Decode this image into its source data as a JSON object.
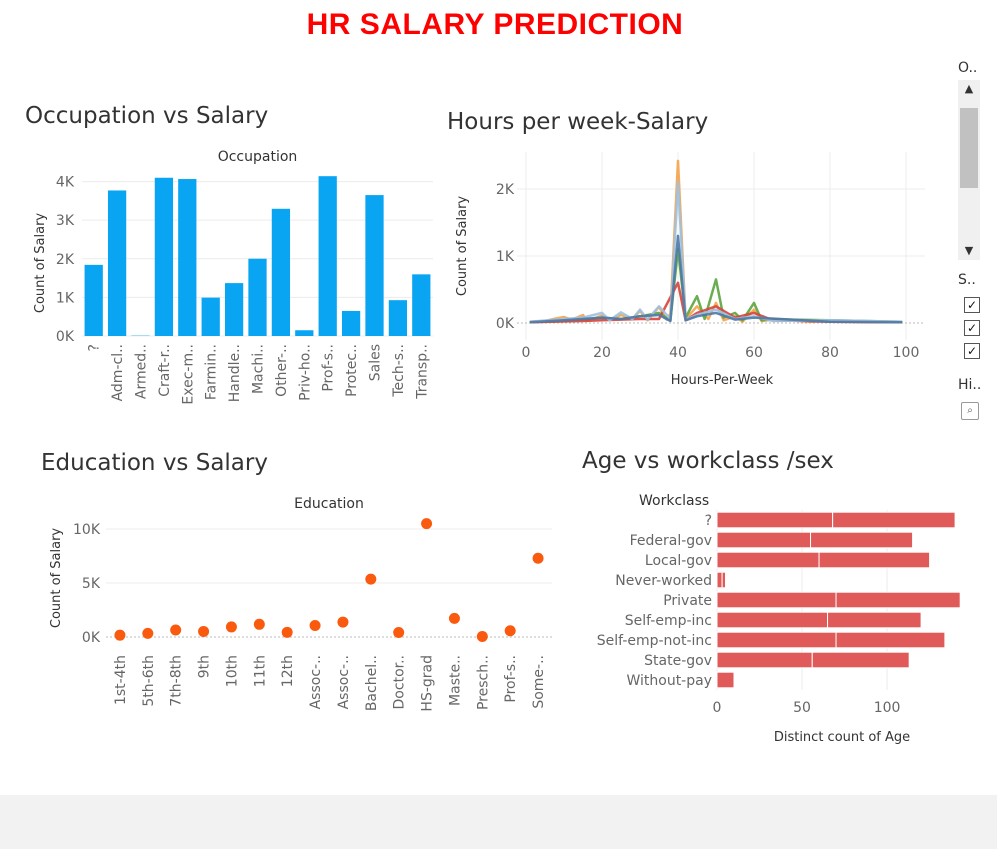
{
  "dashboard": {
    "title": "HR SALARY PREDICTION"
  },
  "side_panel": {
    "filter_label_1": "O..",
    "filter_label_2": "S..",
    "filter_label_3": "Hi..",
    "scroll_up": "▲",
    "scroll_down": "▼",
    "check_mark": "✓",
    "search_icon": "⌕"
  },
  "sheets": {
    "occupation": "Occupation vs Salary",
    "hours": "Hours per week-Salary",
    "education": "Education vs Salary",
    "age": "Age vs workclass /sex"
  },
  "colors": {
    "title_red": "#ff0000",
    "bar_blue": "#09a5f3",
    "dot_orange": "#f95a0e",
    "hbar_red": "#e05a5a"
  },
  "chart_data": [
    {
      "id": "occupation",
      "type": "bar",
      "title": "Occupation",
      "ylabel": "Count of Salary",
      "categories": [
        "?",
        "Adm-cl..",
        "Armed..",
        "Craft-r..",
        "Exec-m..",
        "Farmin..",
        "Handle..",
        "Machi..",
        "Other-..",
        "Priv-ho..",
        "Prof-s..",
        "Protec..",
        "Sales",
        "Tech-s..",
        "Transp.."
      ],
      "values": [
        1843,
        3770,
        9,
        4099,
        4066,
        994,
        1370,
        2002,
        3295,
        149,
        4140,
        649,
        3650,
        928,
        1597
      ],
      "yticks": [
        "0K",
        "1K",
        "2K",
        "3K",
        "4K"
      ],
      "ylim": [
        0,
        4300
      ]
    },
    {
      "id": "hours",
      "type": "line",
      "xlabel": "Hours-Per-Week",
      "ylabel": "Count of Salary",
      "xticks": [
        0,
        20,
        40,
        60,
        80,
        100
      ],
      "yticks": [
        "0K",
        "1K",
        "2K"
      ],
      "xlim": [
        0,
        100
      ],
      "ylim": [
        0,
        2450
      ],
      "series": [
        {
          "color": "#f5a34a",
          "points": [
            [
              1,
              20
            ],
            [
              5,
              30
            ],
            [
              8,
              70
            ],
            [
              10,
              90
            ],
            [
              12,
              50
            ],
            [
              15,
              120
            ],
            [
              16,
              30
            ],
            [
              20,
              110
            ],
            [
              22,
              40
            ],
            [
              25,
              120
            ],
            [
              28,
              60
            ],
            [
              30,
              180
            ],
            [
              32,
              40
            ],
            [
              35,
              240
            ],
            [
              37,
              50
            ],
            [
              38,
              140
            ],
            [
              40,
              2420
            ],
            [
              42,
              60
            ],
            [
              45,
              250
            ],
            [
              48,
              60
            ],
            [
              50,
              300
            ],
            [
              52,
              40
            ],
            [
              55,
              100
            ],
            [
              57,
              20
            ],
            [
              60,
              200
            ],
            [
              62,
              30
            ],
            [
              65,
              50
            ],
            [
              70,
              40
            ],
            [
              75,
              20
            ],
            [
              80,
              30
            ],
            [
              90,
              10
            ],
            [
              99,
              20
            ]
          ]
        },
        {
          "color": "#5ba53f",
          "points": [
            [
              1,
              10
            ],
            [
              10,
              30
            ],
            [
              15,
              50
            ],
            [
              20,
              80
            ],
            [
              25,
              60
            ],
            [
              30,
              100
            ],
            [
              35,
              150
            ],
            [
              38,
              40
            ],
            [
              40,
              1100
            ],
            [
              42,
              80
            ],
            [
              45,
              400
            ],
            [
              47,
              60
            ],
            [
              50,
              650
            ],
            [
              52,
              80
            ],
            [
              55,
              150
            ],
            [
              57,
              40
            ],
            [
              60,
              300
            ],
            [
              62,
              40
            ],
            [
              65,
              60
            ],
            [
              70,
              50
            ],
            [
              80,
              40
            ],
            [
              99,
              20
            ]
          ]
        },
        {
          "color": "#d6453d",
          "points": [
            [
              1,
              10
            ],
            [
              15,
              30
            ],
            [
              20,
              40
            ],
            [
              30,
              60
            ],
            [
              35,
              60
            ],
            [
              40,
              600
            ],
            [
              42,
              40
            ],
            [
              45,
              150
            ],
            [
              50,
              250
            ],
            [
              55,
              80
            ],
            [
              60,
              150
            ],
            [
              65,
              40
            ],
            [
              80,
              20
            ],
            [
              99,
              10
            ]
          ]
        },
        {
          "color": "#9ec1e0",
          "points": [
            [
              1,
              20
            ],
            [
              10,
              60
            ],
            [
              15,
              80
            ],
            [
              20,
              150
            ],
            [
              22,
              40
            ],
            [
              25,
              160
            ],
            [
              28,
              60
            ],
            [
              30,
              200
            ],
            [
              32,
              50
            ],
            [
              35,
              250
            ],
            [
              38,
              60
            ],
            [
              40,
              2100
            ],
            [
              42,
              50
            ],
            [
              45,
              120
            ],
            [
              50,
              200
            ],
            [
              55,
              60
            ],
            [
              60,
              100
            ],
            [
              65,
              30
            ],
            [
              80,
              40
            ],
            [
              99,
              20
            ]
          ]
        },
        {
          "color": "#4e79a7",
          "points": [
            [
              1,
              10
            ],
            [
              10,
              40
            ],
            [
              20,
              80
            ],
            [
              25,
              60
            ],
            [
              30,
              100
            ],
            [
              35,
              120
            ],
            [
              38,
              30
            ],
            [
              40,
              1300
            ],
            [
              42,
              40
            ],
            [
              45,
              100
            ],
            [
              50,
              150
            ],
            [
              55,
              50
            ],
            [
              60,
              80
            ],
            [
              80,
              20
            ],
            [
              99,
              10
            ]
          ]
        }
      ]
    },
    {
      "id": "education",
      "type": "scatter",
      "title": "Education",
      "ylabel": "Count of Salary",
      "categories": [
        "1st-4th",
        "5th-6th",
        "7th-8th",
        "9th",
        "10th",
        "11th",
        "12th",
        "Assoc-..",
        "Assoc-..",
        "Bachel..",
        "Doctor..",
        "HS-grad",
        "Maste..",
        "Presch..",
        "Prof-s..",
        "Some-.."
      ],
      "values": [
        168,
        333,
        646,
        514,
        933,
        1175,
        433,
        1067,
        1382,
        5355,
        413,
        10501,
        1723,
        51,
        576,
        7291
      ],
      "yticks": [
        "0K",
        "5K",
        "10K"
      ],
      "ylim": [
        0,
        11000
      ]
    },
    {
      "id": "age",
      "type": "bar",
      "orientation": "horizontal",
      "title": "Workclass",
      "xlabel": "Distinct count of Age",
      "categories": [
        "?",
        "Federal-gov",
        "Local-gov",
        "Never-worked",
        "Private",
        "Self-emp-inc",
        "Self-emp-not-inc",
        "State-gov",
        "Without-pay"
      ],
      "series": [
        {
          "values": [
            68,
            55,
            60,
            3,
            70,
            65,
            70,
            56,
            10
          ]
        },
        {
          "values": [
            72,
            60,
            65,
            2,
            73,
            55,
            64,
            57,
            0
          ]
        }
      ],
      "xticks": [
        0,
        50,
        100
      ],
      "xlim": [
        0,
        147
      ]
    }
  ]
}
